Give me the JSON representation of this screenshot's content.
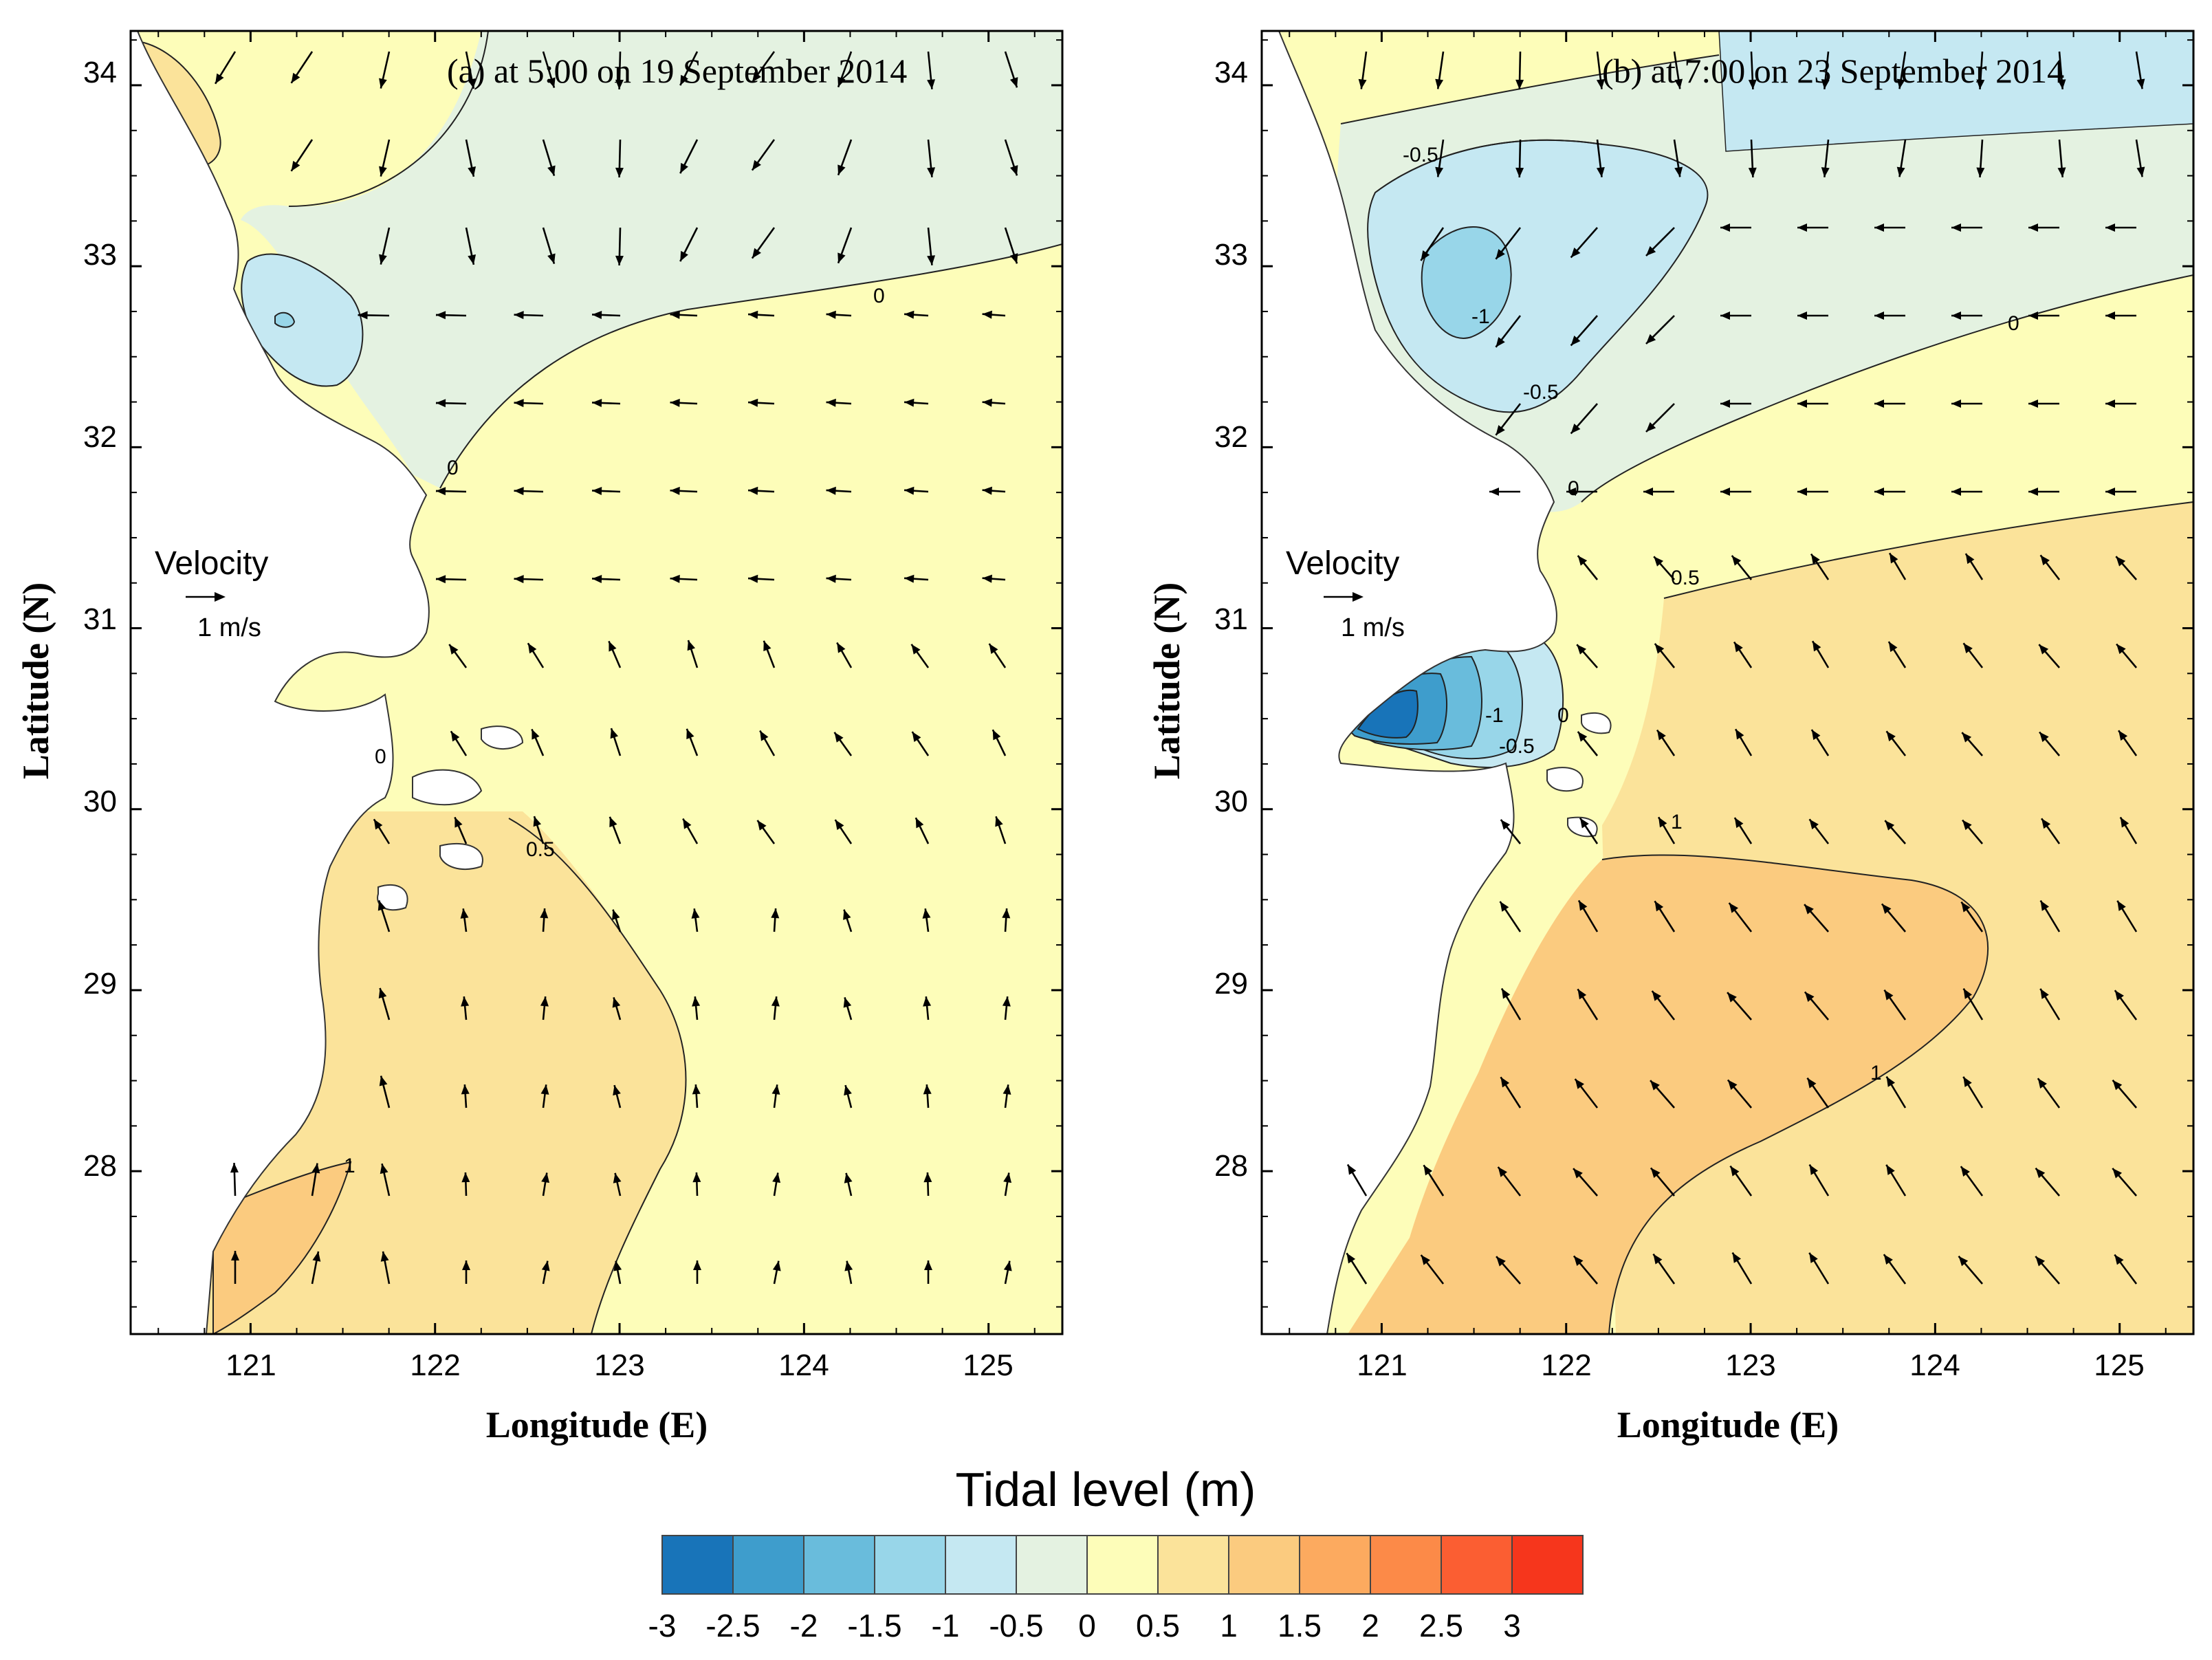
{
  "chart_data": [
    {
      "type": "heatmap",
      "subtype": "contour-map-with-velocity-vectors",
      "title": "(a) at 5:00 on 19 September 2014",
      "xlabel": "Longitude (E)",
      "ylabel": "Latitude (N)",
      "xlim": [
        120.35,
        125.4
      ],
      "ylim": [
        27.1,
        34.3
      ],
      "xticks": [
        "121",
        "122",
        "123",
        "124",
        "125"
      ],
      "yticks": [
        "28",
        "29",
        "30",
        "31",
        "32",
        "33",
        "34"
      ],
      "contour_labels": [
        {
          "text": "0",
          "lon": 124.4,
          "lat": 32.8
        },
        {
          "text": "0",
          "lon": 122.05,
          "lat": 31.8
        },
        {
          "text": "0",
          "lon": 121.7,
          "lat": 30.25
        },
        {
          "text": "0.5",
          "lon": 122.6,
          "lat": 29.75
        },
        {
          "text": "1",
          "lon": 121.55,
          "lat": 28.05
        }
      ],
      "velocity_legend": {
        "label": "Velocity",
        "unit": "1 m/s"
      },
      "flow": "onshore / westward, rotating southward north of Changjiang",
      "panel_values": {
        "north_low": "-0.5 to 0",
        "central": "0 to 0.5",
        "south": "0.5 to 1",
        "southwest_max": "1 to 1.5"
      }
    },
    {
      "type": "heatmap",
      "subtype": "contour-map-with-velocity-vectors",
      "title": "(b) at 7:00 on 23 September 2014",
      "xlabel": "Longitude (E)",
      "ylabel": "Latitude (N)",
      "xlim": [
        120.35,
        125.4
      ],
      "ylim": [
        27.1,
        34.3
      ],
      "xticks": [
        "121",
        "122",
        "123",
        "124",
        "125"
      ],
      "yticks": [
        "28",
        "29",
        "30",
        "31",
        "32",
        "33",
        "34"
      ],
      "contour_labels": [
        {
          "text": "-0.5",
          "lon": 121.1,
          "lat": 33.5
        },
        {
          "text": "-1",
          "lon": 121.6,
          "lat": 32.55
        },
        {
          "text": "-0.5",
          "lon": 121.9,
          "lat": 32.15
        },
        {
          "text": "0",
          "lon": 123.5,
          "lat": 32.5
        },
        {
          "text": "0",
          "lon": 122.05,
          "lat": 31.6
        },
        {
          "text": "0.5",
          "lon": 122.6,
          "lat": 31.15
        },
        {
          "text": "-1",
          "lon": 121.5,
          "lat": 30.35
        },
        {
          "text": "-0.5",
          "lon": 121.6,
          "lat": 30.25
        },
        {
          "text": "0",
          "lon": 121.85,
          "lat": 30.4
        },
        {
          "text": "1",
          "lon": 122.55,
          "lat": 29.8
        },
        {
          "text": "1",
          "lon": 123.6,
          "lat": 28.5
        }
      ],
      "velocity_legend": {
        "label": "Velocity",
        "unit": "1 m/s"
      },
      "flow": "northwestward over the shelf, southward in the northern bight",
      "panel_values": {
        "north_low": "-1.5 to -0.5",
        "hangzhou_bay": "-2.5 to -1",
        "central": "0 to 0.5",
        "southeast": "0.5 to 1",
        "south": "1 to 1.5"
      }
    }
  ],
  "colorbar": {
    "title": "Tidal level (m)",
    "levels": [
      "-3",
      "-2.5",
      "-2",
      "-1.5",
      "-1",
      "-0.5",
      "0",
      "0.5",
      "1",
      "1.5",
      "2",
      "2.5",
      "3"
    ],
    "colors": [
      "#1874b9",
      "#3e9dcc",
      "#69bcdc",
      "#98d6e9",
      "#c5e8f2",
      "#e4f2e1",
      "#fdfdb9",
      "#fbe39a",
      "#fbcb7f",
      "#fcaa5f",
      "#fc8a48",
      "#fb5e32",
      "#f6361c"
    ]
  },
  "palette": {
    "n05": "#c5e8f2",
    "n10": "#98d6e9",
    "n15": "#69bcdc",
    "n20": "#3e9dcc",
    "z": "#e4f2e1",
    "p0": "#fdfdb9",
    "p05": "#fbe39a",
    "p10": "#fbcb7f",
    "p15": "#fcaa5f",
    "p20": "#fc8a48"
  }
}
